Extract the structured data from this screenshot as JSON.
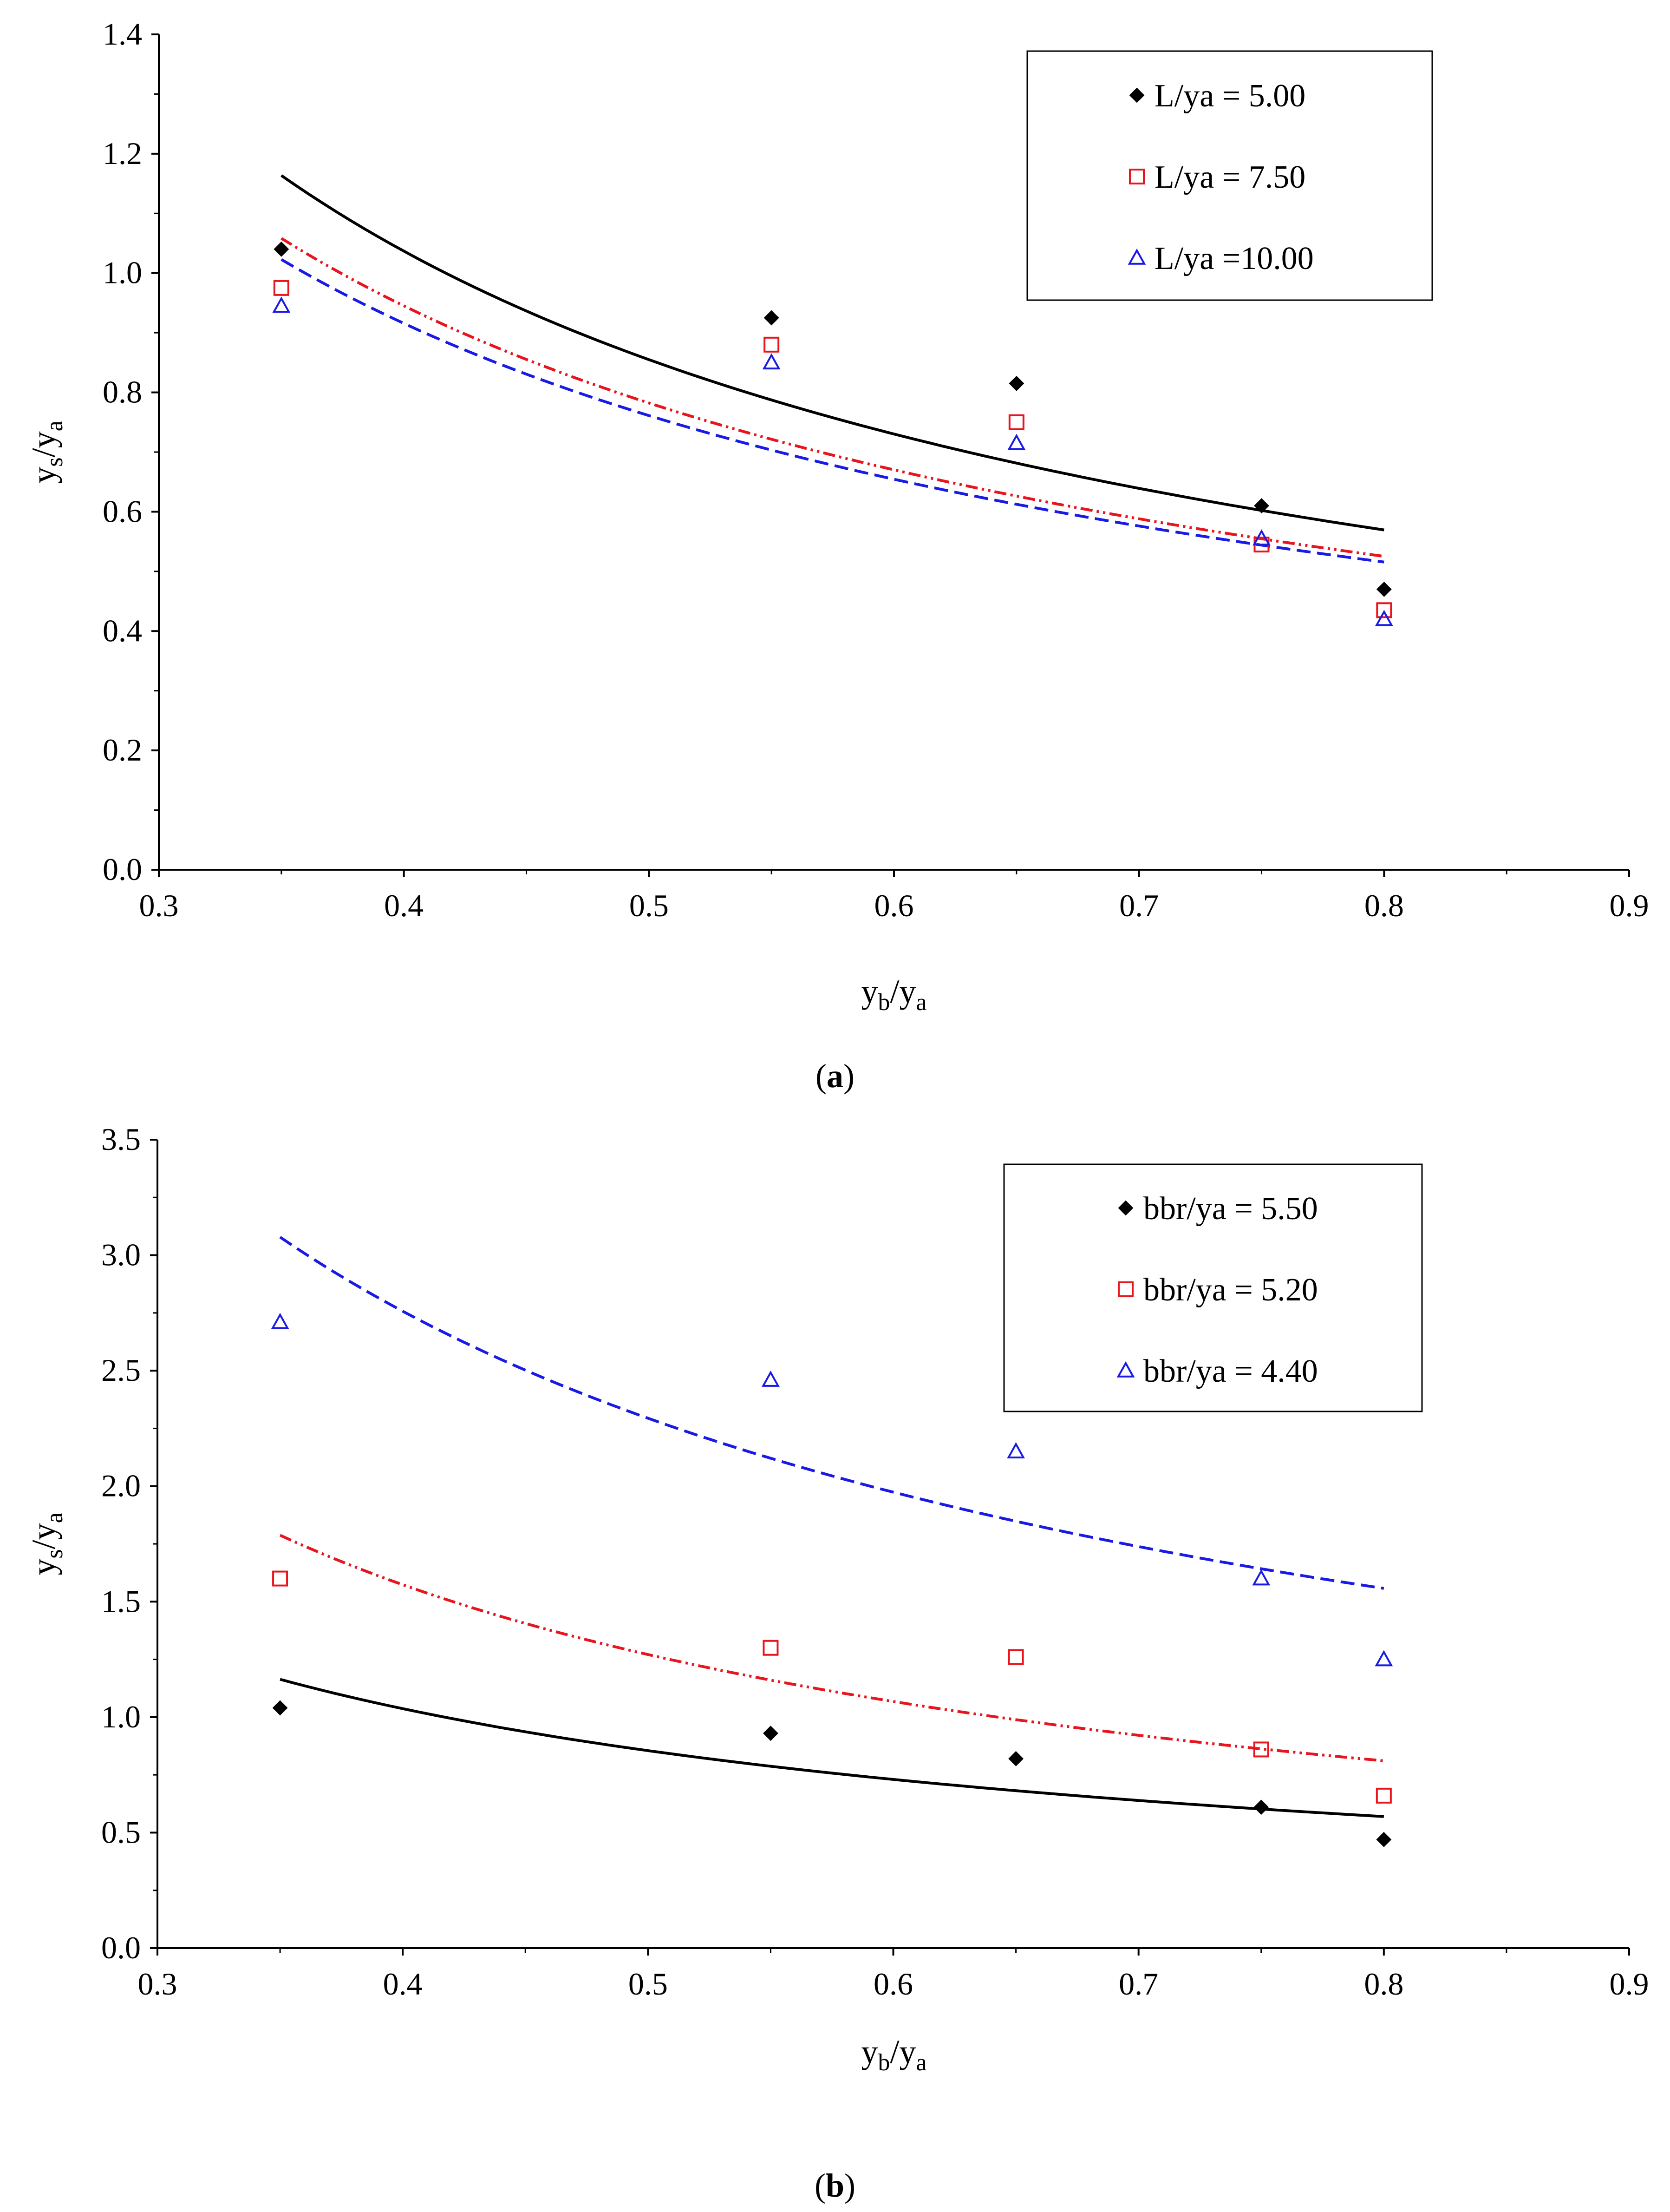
{
  "chart_data": [
    {
      "type": "line",
      "panel": "a",
      "caption": {
        "open": "(",
        "letter": "a",
        "close": ")"
      },
      "xlabel": {
        "main": "y",
        "sub": "b",
        "slash": "/y",
        "sub2": "a"
      },
      "ylabel": {
        "main": "y",
        "sub": "s",
        "slash": "/y",
        "sub2": "a"
      },
      "xlim": [
        0.3,
        0.9
      ],
      "ylim": [
        0.0,
        1.4
      ],
      "xticks": [
        "0.3",
        "0.4",
        "0.5",
        "0.6",
        "0.7",
        "0.8",
        "0.9"
      ],
      "yticks": [
        "0.0",
        "0.2",
        "0.4",
        "0.6",
        "0.8",
        "1.0",
        "1.2",
        "1.4"
      ],
      "grid": false,
      "legend_position": "top-right",
      "series": [
        {
          "name": "L/ya = 5.00",
          "marker": "diamond",
          "color": "#000000",
          "line_style": "solid",
          "points": {
            "x": [
              0.35,
              0.55,
              0.65,
              0.75,
              0.8
            ],
            "y": [
              1.04,
              0.925,
              0.815,
              0.61,
              0.47
            ]
          },
          "curve": {
            "x": [
              0.35,
              0.8
            ],
            "a": 0.4696,
            "b": -0.8643
          }
        },
        {
          "name": "L/ya = 7.50",
          "marker": "square",
          "color": "#e8141e",
          "line_style": "dash-dot-dot",
          "points": {
            "x": [
              0.35,
              0.55,
              0.65,
              0.75,
              0.8
            ],
            "y": [
              0.975,
              0.88,
              0.75,
              0.545,
              0.435
            ]
          },
          "curve": {
            "x": [
              0.35,
              0.8
            ],
            "a": 0.4347,
            "b": -0.8475
          }
        },
        {
          "name": "L/ya =10.00",
          "marker": "triangle",
          "color": "#1a1ae6",
          "line_style": "dashed",
          "points": {
            "x": [
              0.35,
              0.55,
              0.65,
              0.75,
              0.8
            ],
            "y": [
              0.945,
              0.85,
              0.715,
              0.555,
              0.42
            ]
          },
          "curve": {
            "x": [
              0.35,
              0.8
            ],
            "a": 0.4287,
            "b": -0.8282
          }
        }
      ]
    },
    {
      "type": "line",
      "panel": "b",
      "caption": {
        "open": "(",
        "letter": "b",
        "close": ")"
      },
      "xlabel": {
        "main": "y",
        "sub": "b",
        "slash": "/y",
        "sub2": "a"
      },
      "ylabel": {
        "main": "y",
        "sub": "s",
        "slash": "/y",
        "sub2": "a"
      },
      "xlim": [
        0.3,
        0.9
      ],
      "ylim": [
        0.0,
        3.5
      ],
      "xticks": [
        "0.3",
        "0.4",
        "0.5",
        "0.6",
        "0.7",
        "0.8",
        "0.9"
      ],
      "yticks": [
        "0.0",
        "0.5",
        "1.0",
        "1.5",
        "2.0",
        "2.5",
        "3.0",
        "3.5"
      ],
      "grid": false,
      "legend_position": "top-right",
      "series": [
        {
          "name": "bbr/ya = 5.50",
          "marker": "diamond",
          "color": "#000000",
          "line_style": "solid",
          "points": {
            "x": [
              0.35,
              0.55,
              0.65,
              0.75,
              0.8
            ],
            "y": [
              1.04,
              0.93,
              0.82,
              0.61,
              0.47
            ]
          },
          "curve": {
            "x": [
              0.35,
              0.8
            ],
            "a": 0.4696,
            "b": -0.8643
          }
        },
        {
          "name": "bbr/ya = 5.20",
          "marker": "square",
          "color": "#e8141e",
          "line_style": "dash-dot-dot",
          "points": {
            "x": [
              0.35,
              0.55,
              0.65,
              0.75,
              0.8
            ],
            "y": [
              1.6,
              1.3,
              1.26,
              0.86,
              0.66
            ]
          },
          "curve": {
            "x": [
              0.35,
              0.8
            ],
            "a": 0.6551,
            "b": -0.9562
          }
        },
        {
          "name": "bbr/ya = 4.40",
          "marker": "triangle",
          "color": "#1a1ae6",
          "line_style": "dashed",
          "points": {
            "x": [
              0.35,
              0.55,
              0.65,
              0.75,
              0.8
            ],
            "y": [
              2.71,
              2.46,
              2.15,
              1.6,
              1.25
            ]
          },
          "curve": {
            "x": [
              0.35,
              0.8
            ],
            "a": 1.2956,
            "b": -0.8243
          }
        }
      ]
    }
  ]
}
